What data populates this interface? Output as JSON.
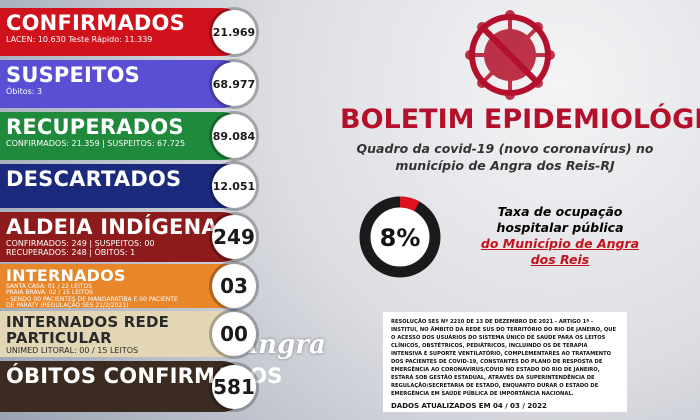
{
  "panels": [
    {
      "title": "CONFIRMADOS",
      "badge": "21.969",
      "lines": [
        "LACEN: 10.630 Teste Rápido: 11.339"
      ]
    },
    {
      "title": "SUSPEITOS",
      "badge": "68.977",
      "lines": [
        "Óbitos: 3"
      ]
    },
    {
      "title": "RECUPERADOS",
      "badge": "89.084",
      "lines": [
        "CONFIRMADOS: 21.359 | SUSPEITOS: 67.725"
      ]
    },
    {
      "title": "DESCARTADOS",
      "badge": "12.051",
      "lines": []
    },
    {
      "title": "ALDEIA INDÍGENA",
      "badge": "249",
      "lines": [
        "CONFIRMADOS: 249 | SUSPEITOS: 00",
        "RECUPERADOS: 248 | ÓBITOS: 1"
      ]
    },
    {
      "title": "INTERNADOS",
      "badge": "03",
      "lines": [
        "SANTA CASA: 01 / 22 LEITOS",
        "PRAIA BRAVA: 02 / 15 LEITOS",
        "- SENDO 00 PACIENTES DE MANGARATIBA E 00 PACIENTE",
        "DE PARATY (REGULAÇÃO SES 21/2/2021)"
      ]
    },
    {
      "title": "INTERNADOS REDE PARTICULAR",
      "badge": "00",
      "lines": [
        "UNIMED LITORAL: 00 / 15 LEITOS"
      ]
    },
    {
      "title": "ÓBITOS CONFIRMADOS",
      "badge": "581",
      "lines": []
    }
  ],
  "header": {
    "title": "BOLETIM EPIDEMIOLÓGICO",
    "subtitle": "Quadro da covid-19 (novo coronavírus) no município de Angra dos Reis-RJ"
  },
  "occupancy": {
    "value": 8,
    "label": "8%",
    "caption": "Taxa de ocupação hospitalar pública",
    "caption_place": "do Município de Angra dos Reis"
  },
  "resolution": "RESOLUÇÃO SES Nº 2210 DE 13 DE DEZEMBRO DE 2021 - ARTIGO 1º - INSTITUI, NO ÂMBITO DA REDE SUS DO TERRITÓRIO DO RIO DE JANEIRO, QUE O ACESSO DOS USUÁRIOS DO SISTEMA ÚNICO DE SAÚDE PARA OS LEITOS CLÍNICOS, OBSTÉTRICOS, PEDIÁTRICOS, INCLUINDO OS DE TERAPIA INTENSIVA E SUPORTE VENTILATÓRIO, COMPLEMENTARES AO TRATAMENTO DOS PACIENTES DE COVID-19, CONSTANTES DO PLANO DE RESPOSTA DE EMERGÊNCIA AO CORONAVÍRUS/COVID NO ESTADO DO RIO DE JANEIRO, ESTARÁ SOB GESTÃO ESTADUAL, ATRAVÉS DA SUPERINTENDÊNCIA DE REGULAÇÃO/SECRETARIA DE ESTADO, ENQUANTO DURAR O ESTADO DE EMERGÊNCIA EM SAÚDE PÚBLICA DE IMPORTÂNCIA NACIONAL.",
  "updated": "DADOS ATUALIZADOS EM  04 / 03 / 2022",
  "logo": "Angra"
}
